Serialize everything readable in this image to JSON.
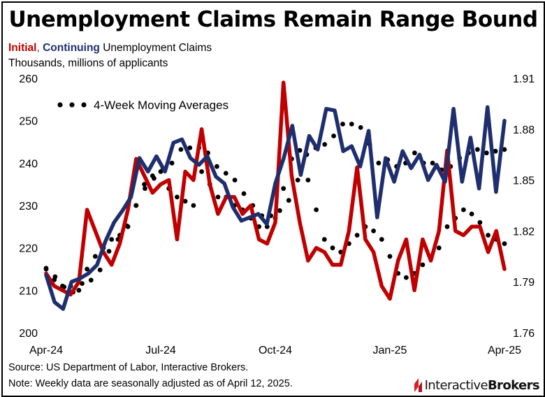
{
  "header": {
    "title": "Unemployment Claims Remain Range Bound",
    "subtitle_initial": "Initial",
    "subtitle_sep": ",",
    "subtitle_continuing": "Continuing",
    "subtitle_rest": " Unemployment Claims",
    "units": "Thousands, millions of applicants"
  },
  "footer": {
    "source": "Source: US Department of Labor, Interactive Brokers.",
    "note": "Note: Weekly data are seasonally adjusted as of April 12, 2025.",
    "logo_text_1": "Interactive",
    "logo_text_2": "Brokers"
  },
  "colors": {
    "initial": "#c00000",
    "continuing": "#1f2f6e",
    "moving_average": "#000000",
    "logo": "#d81f26"
  },
  "chart_data": {
    "type": "line",
    "title": "Unemployment Claims Remain Range Bound",
    "grid": false,
    "legend": {
      "position": "top-left",
      "label": "4-Week Moving Averages",
      "marker": "dotted"
    },
    "x_labels": [
      "Apr-24",
      "Jul-24",
      "Oct-24",
      "Jan-25",
      "Apr-25"
    ],
    "x_label_weeks": [
      0,
      13,
      26,
      39,
      52
    ],
    "y_left": {
      "label": "Thousands",
      "ticks": [
        200,
        210,
        220,
        230,
        240,
        250,
        260
      ],
      "range": [
        200,
        260
      ]
    },
    "y_right": {
      "label": "millions of applicants",
      "ticks": [
        1.76,
        1.79,
        1.82,
        1.85,
        1.88,
        1.91
      ],
      "range": [
        1.76,
        1.91
      ]
    },
    "series": [
      {
        "name": "Initial",
        "axis": "left",
        "style": "solid",
        "values": [
          214,
          211,
          210,
          209,
          212,
          229,
          224,
          219,
          216,
          221,
          229,
          241,
          237,
          233,
          235,
          236,
          222,
          238,
          236,
          248,
          235,
          228,
          232,
          232,
          228,
          230,
          222,
          221,
          226,
          259,
          237,
          226,
          217,
          220,
          219,
          216,
          216,
          224,
          239,
          222,
          219,
          211,
          208,
          217,
          222,
          210,
          222,
          217,
          224,
          243,
          224,
          223,
          225,
          225,
          219,
          224,
          215
        ]
      },
      {
        "name": "Initial 4-week average",
        "axis": "left",
        "style": "dotted",
        "values": [
          215,
          212.5,
          211,
          211,
          210,
          215,
          218,
          220,
          222,
          223,
          225,
          230,
          235,
          237,
          238,
          234,
          232,
          231,
          230,
          238,
          235,
          232,
          232,
          230,
          229,
          227,
          225,
          225,
          227,
          234,
          241,
          243,
          236,
          229,
          222,
          220,
          219,
          221,
          223,
          225,
          224,
          222,
          218,
          214,
          213,
          214,
          216,
          218,
          220,
          225,
          227,
          229,
          228,
          226,
          223,
          222,
          221
        ]
      },
      {
        "name": "Continuing",
        "axis": "right",
        "style": "solid",
        "values": [
          1.794,
          1.778,
          1.774,
          1.79,
          1.792,
          1.795,
          1.8,
          1.814,
          1.825,
          1.832,
          1.84,
          1.863,
          1.855,
          1.864,
          1.855,
          1.872,
          1.874,
          1.863,
          1.859,
          1.864,
          1.852,
          1.848,
          1.834,
          1.826,
          1.828,
          1.83,
          1.824,
          1.848,
          1.863,
          1.882,
          1.853,
          1.876,
          1.868,
          1.892,
          1.891,
          1.867,
          1.87,
          1.858,
          1.879,
          1.828,
          1.863,
          1.849,
          1.867,
          1.857,
          1.865,
          1.85,
          1.859,
          1.849,
          1.892,
          1.849,
          1.875,
          1.845,
          1.893,
          1.843,
          1.885
        ]
      },
      {
        "name": "Continuing 4-week average",
        "axis": "right",
        "style": "dotted",
        "values": [
          1.798,
          1.793,
          1.787,
          1.784,
          1.789,
          1.791,
          1.797,
          1.808,
          1.815,
          1.823,
          1.835,
          1.845,
          1.851,
          1.857,
          1.86,
          1.868,
          1.869,
          1.869,
          1.866,
          1.858,
          1.854,
          1.85,
          1.842,
          1.835,
          1.829,
          1.829,
          1.832,
          1.838,
          1.85,
          1.865,
          1.869,
          1.871,
          1.876,
          1.883,
          1.883,
          1.881,
          1.871,
          1.86,
          1.862,
          1.858,
          1.86,
          1.866,
          1.86,
          1.86,
          1.856,
          1.858,
          1.863,
          1.866,
          1.868,
          1.866,
          1.867,
          1.868
        ]
      }
    ]
  }
}
